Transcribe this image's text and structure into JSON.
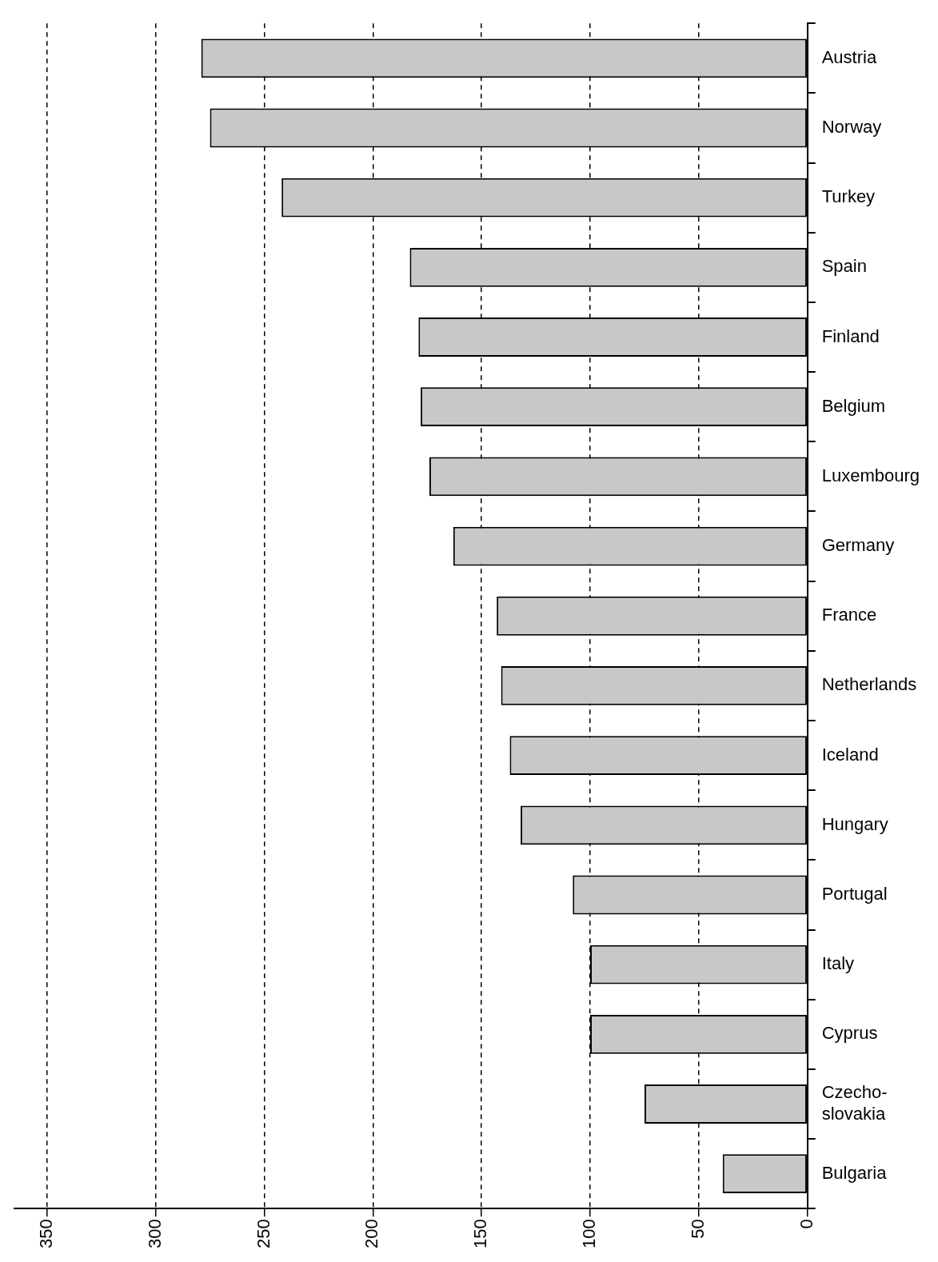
{
  "chart_data": {
    "type": "bar",
    "orientation": "horizontal",
    "categories": [
      "Austria",
      "Norway",
      "Turkey",
      "Spain",
      "Finland",
      "Belgium",
      "Luxembourg",
      "Germany",
      "France",
      "Netherlands",
      "Iceland",
      "Hungary",
      "Portugal",
      "Italy",
      "Cyprus",
      "Czecho-\nslovakia",
      "Bulgaria"
    ],
    "values": [
      279,
      275,
      242,
      183,
      179,
      178,
      174,
      163,
      143,
      141,
      137,
      132,
      108,
      100,
      100,
      75,
      39
    ],
    "color": "#c8c8c8",
    "xlim": [
      365,
      0
    ],
    "xticks": [
      350,
      300,
      250,
      200,
      150,
      100,
      50,
      0
    ],
    "grid": "x",
    "line_style": "dashed",
    "legend": false
  }
}
